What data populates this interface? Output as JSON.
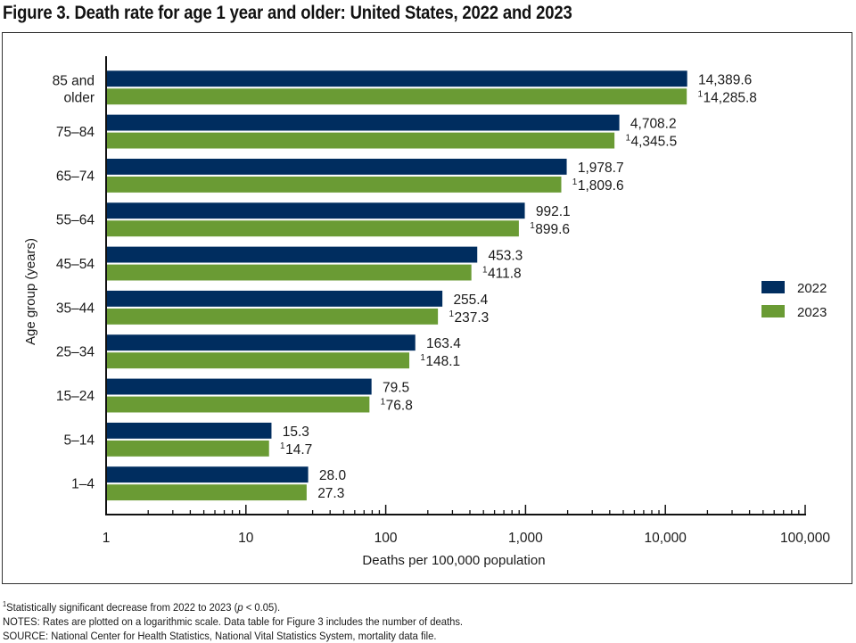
{
  "figure": {
    "title": "Figure 3. Death rate for age 1 year and older: United States, 2022 and 2023"
  },
  "footnotes": {
    "sig_marker": "1",
    "sig_text_before": "Statistically significant decrease from 2022 to 2023 (",
    "sig_p": "p",
    "sig_text_after": " < 0.05).",
    "notes": "NOTES: Rates are plotted on a logarithmic scale. Data table for Figure 3 includes the number of deaths.",
    "source": "SOURCE: National Center for Health Statistics, National Vital Statistics System, mortality data file."
  },
  "chart_data": {
    "type": "bar",
    "orientation": "horizontal",
    "scale": "log",
    "title": "Figure 3. Death rate for age 1 year and older: United States, 2022 and 2023",
    "xlabel": "Deaths per 100,000 population",
    "ylabel": "Age group (years)",
    "xlim": [
      1,
      100000
    ],
    "xticks": [
      1,
      10,
      100,
      1000,
      10000,
      100000
    ],
    "xtick_labels": [
      "1",
      "10",
      "100",
      "1,000",
      "10,000",
      "100,000"
    ],
    "grid": false,
    "legend_position": "right",
    "categories": [
      [
        "85 and",
        "older"
      ],
      [
        "75–84"
      ],
      [
        "65–74"
      ],
      [
        "55–64"
      ],
      [
        "45–54"
      ],
      [
        "35–44"
      ],
      [
        "25–34"
      ],
      [
        "15–24"
      ],
      [
        "5–14"
      ],
      [
        "1–4"
      ]
    ],
    "series": [
      {
        "name": "2022",
        "color": "#002d5f",
        "values": [
          14389.6,
          4708.2,
          1978.7,
          992.1,
          453.3,
          255.4,
          163.4,
          79.5,
          15.3,
          28.0
        ],
        "labels": [
          "14,389.6",
          "4,708.2",
          "1,978.7",
          "992.1",
          "453.3",
          "255.4",
          "163.4",
          "79.5",
          "15.3",
          "28.0"
        ],
        "significant": [
          false,
          false,
          false,
          false,
          false,
          false,
          false,
          false,
          false,
          false
        ]
      },
      {
        "name": "2023",
        "color": "#6a9b34",
        "values": [
          14285.8,
          4345.5,
          1809.6,
          899.6,
          411.8,
          237.3,
          148.1,
          76.8,
          14.7,
          27.3
        ],
        "labels": [
          "14,285.8",
          "4,345.5",
          "1,809.6",
          "899.6",
          "411.8",
          "237.3",
          "148.1",
          "76.8",
          "14.7",
          "27.3"
        ],
        "significant": [
          true,
          true,
          true,
          true,
          true,
          true,
          true,
          true,
          true,
          false
        ]
      }
    ],
    "significance_marker": "1"
  }
}
